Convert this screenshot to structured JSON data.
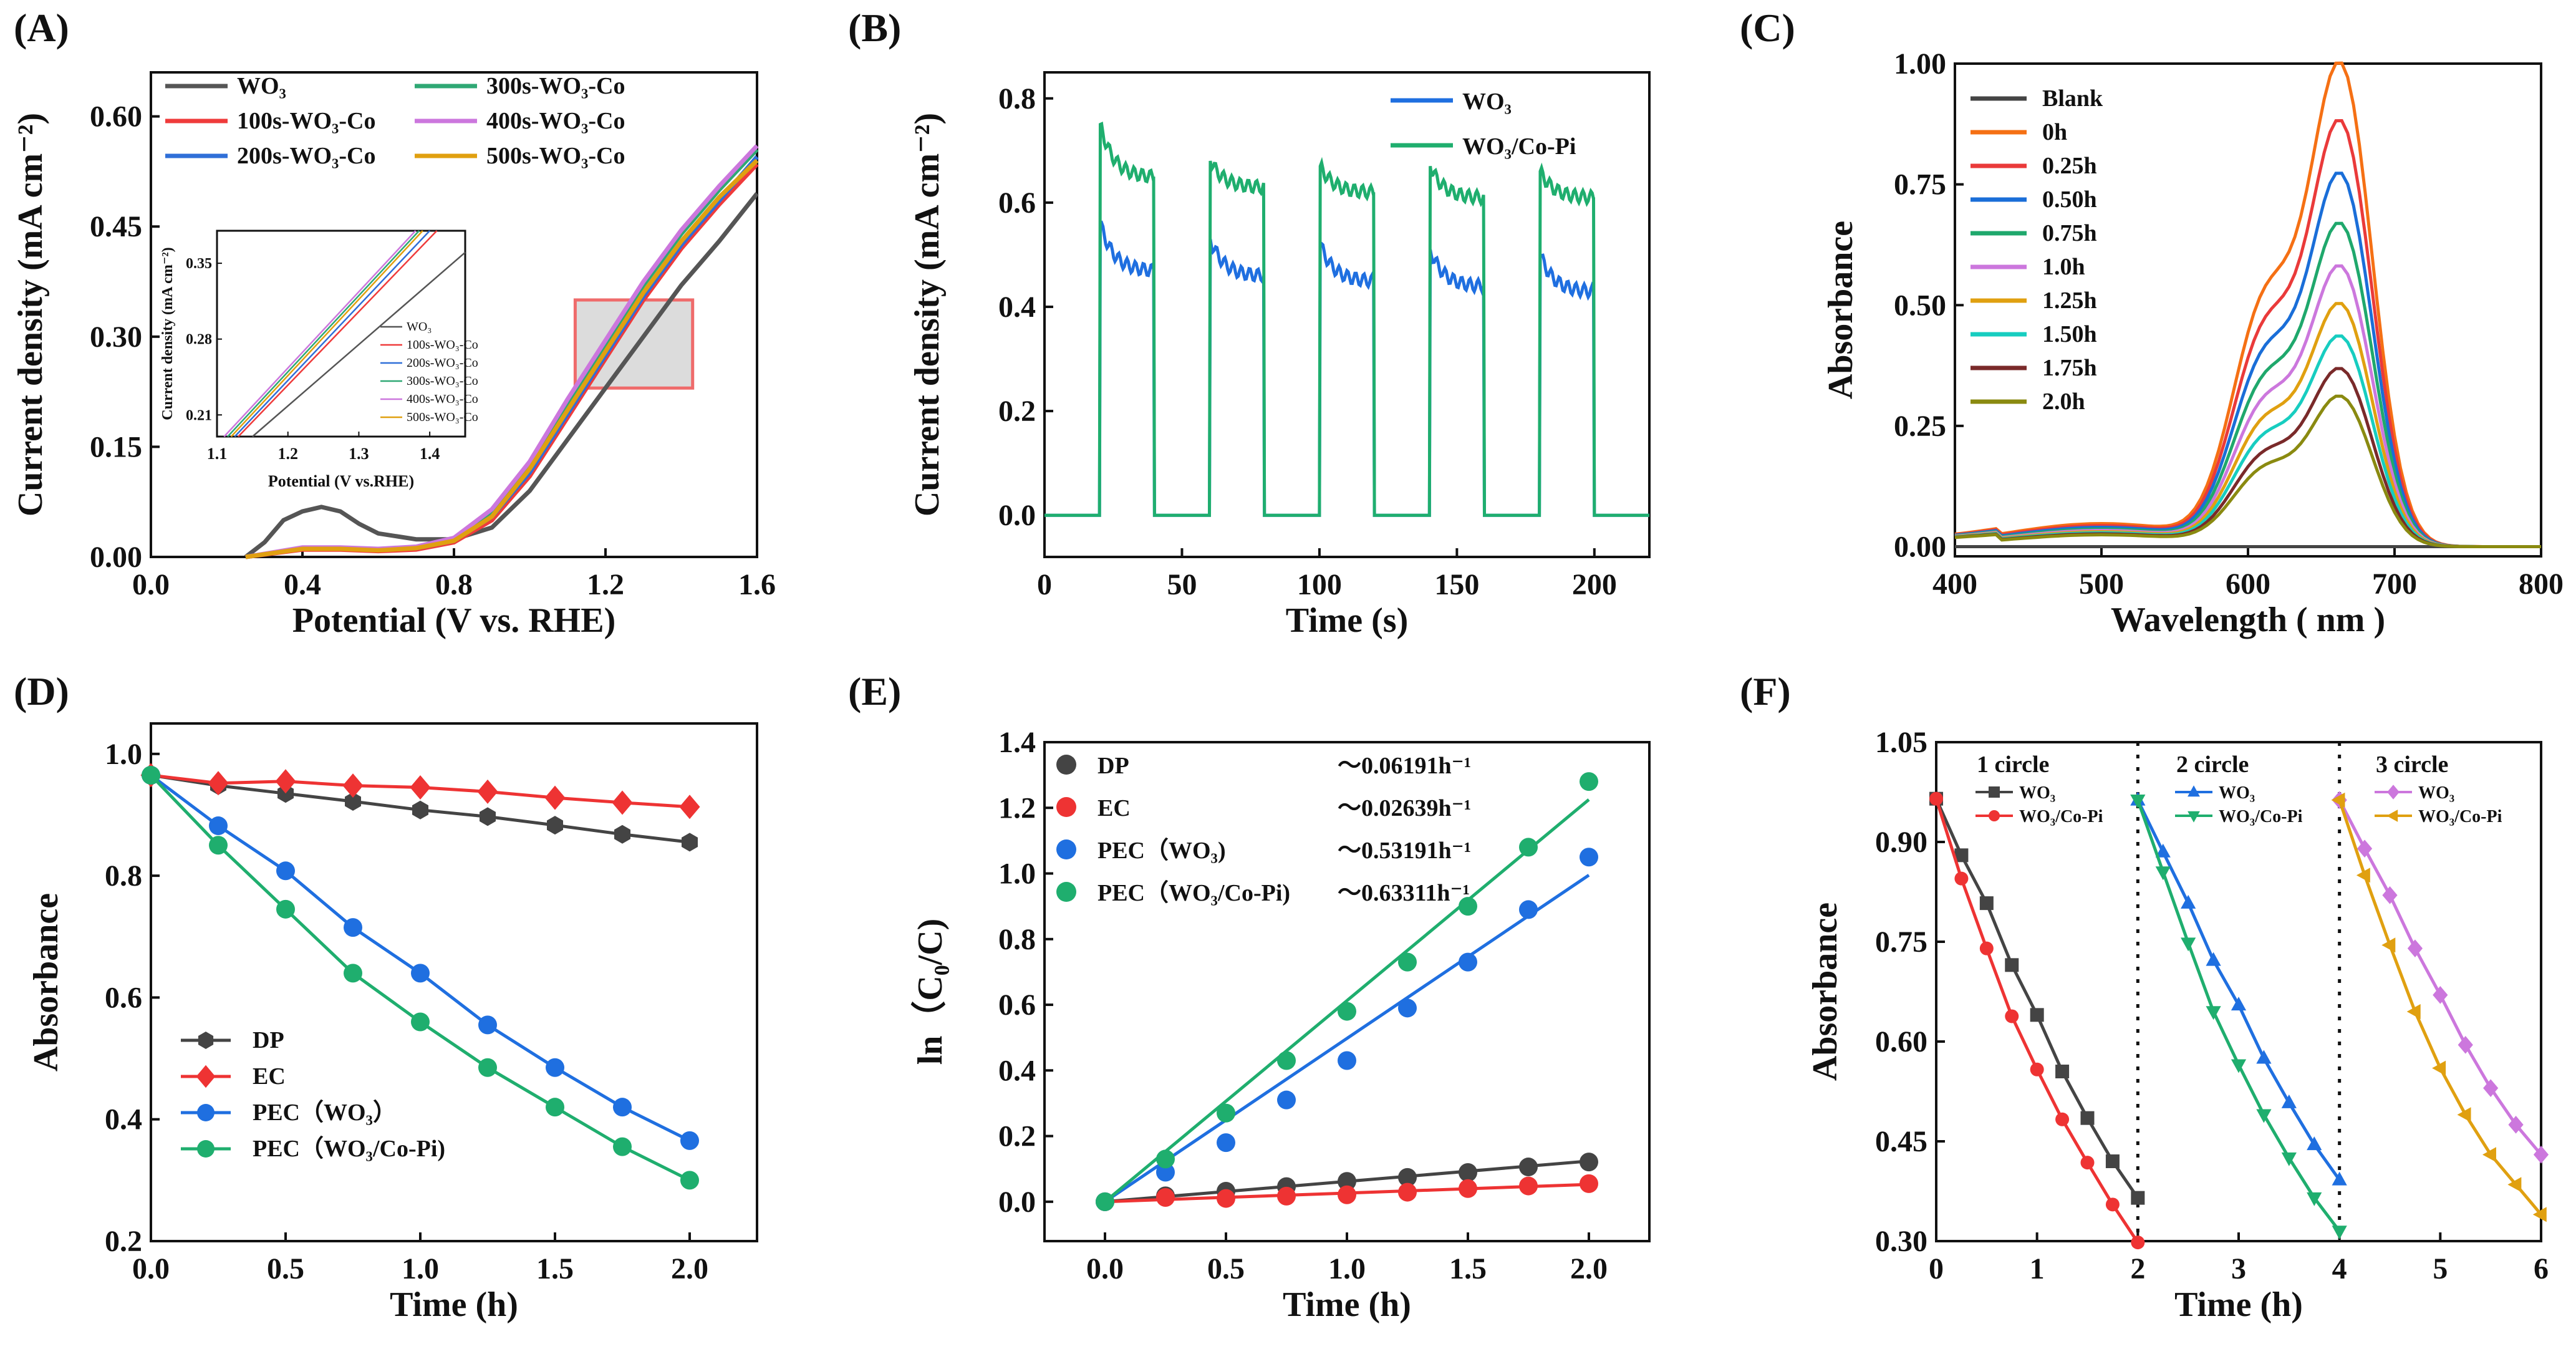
{
  "figure": {
    "panels": [
      "(A)",
      "(B)",
      "(C)",
      "(D)",
      "(E)",
      "(F)"
    ]
  },
  "chart_data": [
    {
      "id": "A",
      "type": "line",
      "label": "(A)",
      "xlabel": "Potential (V vs. RHE)",
      "ylabel": "Current density  (mA cm⁻²)",
      "xlim": [
        0,
        1.6
      ],
      "ylim": [
        0,
        0.66
      ],
      "xticks": [
        "0.0",
        "0.4",
        "0.8",
        "1.2",
        "1.6"
      ],
      "xtick_values": [
        0,
        0.4,
        0.8,
        1.2,
        1.6
      ],
      "yticks": [
        "0.00",
        "0.15",
        "0.30",
        "0.45",
        "0.60"
      ],
      "ytick_values": [
        0,
        0.15,
        0.3,
        0.45,
        0.6
      ],
      "series": [
        {
          "name": "WO₃",
          "color": "#555555",
          "x": [
            0.25,
            0.3,
            0.35,
            0.4,
            0.45,
            0.5,
            0.55,
            0.6,
            0.7,
            0.8,
            0.9,
            1.0,
            1.1,
            1.2,
            1.3,
            1.4,
            1.5,
            1.6
          ],
          "y": [
            0,
            0.02,
            0.05,
            0.062,
            0.068,
            0.062,
            0.045,
            0.032,
            0.024,
            0.024,
            0.04,
            0.09,
            0.16,
            0.23,
            0.3,
            0.37,
            0.43,
            0.495
          ]
        },
        {
          "name": "100s-WO₃-Co",
          "color": "#ef3b3b",
          "x": [
            0.25,
            0.4,
            0.5,
            0.6,
            0.7,
            0.8,
            0.9,
            1.0,
            1.1,
            1.2,
            1.3,
            1.4,
            1.5,
            1.6
          ],
          "y": [
            0,
            0.01,
            0.01,
            0.008,
            0.01,
            0.02,
            0.05,
            0.11,
            0.19,
            0.27,
            0.35,
            0.42,
            0.48,
            0.535
          ]
        },
        {
          "name": "200s-WO₃-Co",
          "color": "#2f6fd8",
          "x": [
            0.25,
            0.4,
            0.5,
            0.6,
            0.7,
            0.8,
            0.9,
            1.0,
            1.1,
            1.2,
            1.3,
            1.4,
            1.5,
            1.6
          ],
          "y": [
            0,
            0.012,
            0.012,
            0.01,
            0.012,
            0.022,
            0.055,
            0.115,
            0.195,
            0.275,
            0.355,
            0.425,
            0.485,
            0.545
          ]
        },
        {
          "name": "300s-WO₃-Co",
          "color": "#2fa874",
          "x": [
            0.25,
            0.4,
            0.5,
            0.6,
            0.7,
            0.8,
            0.9,
            1.0,
            1.1,
            1.2,
            1.3,
            1.4,
            1.5,
            1.6
          ],
          "y": [
            0,
            0.012,
            0.012,
            0.01,
            0.013,
            0.024,
            0.06,
            0.125,
            0.21,
            0.29,
            0.37,
            0.44,
            0.5,
            0.555
          ]
        },
        {
          "name": "400s-WO₃-Co",
          "color": "#cc77dd",
          "x": [
            0.25,
            0.4,
            0.5,
            0.6,
            0.7,
            0.8,
            0.9,
            1.0,
            1.1,
            1.2,
            1.3,
            1.4,
            1.5,
            1.6
          ],
          "y": [
            0,
            0.013,
            0.013,
            0.011,
            0.014,
            0.026,
            0.065,
            0.13,
            0.215,
            0.295,
            0.375,
            0.445,
            0.505,
            0.56
          ]
        },
        {
          "name": "500s-WO₃-Co",
          "color": "#e0a010",
          "x": [
            0.25,
            0.4,
            0.5,
            0.6,
            0.7,
            0.8,
            0.9,
            1.0,
            1.1,
            1.2,
            1.3,
            1.4,
            1.5,
            1.6
          ],
          "y": [
            0,
            0.011,
            0.011,
            0.009,
            0.012,
            0.022,
            0.055,
            0.12,
            0.2,
            0.28,
            0.36,
            0.43,
            0.49,
            0.54
          ]
        }
      ],
      "inset": {
        "xlabel": "Potential (V vs.RHE)",
        "ylabel": "Current density (mA cm⁻²)",
        "xlim": [
          1.1,
          1.45
        ],
        "ylim": [
          0.19,
          0.38
        ],
        "xticks": [
          "1.1",
          "1.2",
          "1.3",
          "1.4"
        ],
        "xtick_values": [
          1.1,
          1.2,
          1.3,
          1.4
        ],
        "yticks": [
          "0.21",
          "0.28",
          "0.35"
        ],
        "ytick_values": [
          0.21,
          0.28,
          0.35
        ],
        "legend": [
          "WO₃",
          "100s-WO₃-Co",
          "200s-WO₃-Co",
          "300s-WO₃-Co",
          "400s-WO₃-Co",
          "500s-WO₃-Co"
        ],
        "lines": [
          {
            "color": "#555555",
            "x": [
              1.15,
              1.45
            ],
            "y": [
              0.19,
              0.36
            ]
          },
          {
            "color": "#ef3b3b",
            "x": [
              1.13,
              1.41
            ],
            "y": [
              0.19,
              0.38
            ]
          },
          {
            "color": "#2f6fd8",
            "x": [
              1.125,
              1.4
            ],
            "y": [
              0.19,
              0.38
            ]
          },
          {
            "color": "#2fa874",
            "x": [
              1.115,
              1.385
            ],
            "y": [
              0.19,
              0.38
            ]
          },
          {
            "color": "#cc77dd",
            "x": [
              1.11,
              1.38
            ],
            "y": [
              0.19,
              0.38
            ]
          },
          {
            "color": "#e0a010",
            "x": [
              1.12,
              1.39
            ],
            "y": [
              0.19,
              0.38
            ]
          }
        ]
      },
      "highlight_box": {
        "x": [
          1.12,
          1.43
        ],
        "y": [
          0.23,
          0.35
        ]
      }
    },
    {
      "id": "B",
      "type": "line",
      "label": "(B)",
      "xlabel": "Time (s)",
      "ylabel": "Current density (mA cm⁻²)",
      "xlim": [
        0,
        220
      ],
      "ylim": [
        -0.08,
        0.85
      ],
      "xticks": [
        "0",
        "50",
        "100",
        "150",
        "200"
      ],
      "xtick_values": [
        0,
        50,
        100,
        150,
        200
      ],
      "yticks": [
        "0.0",
        "0.2",
        "0.4",
        "0.6",
        "0.8"
      ],
      "ytick_values": [
        0,
        0.2,
        0.4,
        0.6,
        0.8
      ],
      "light_on_intervals": [
        [
          20,
          40
        ],
        [
          60,
          80
        ],
        [
          100,
          120
        ],
        [
          140,
          160
        ],
        [
          180,
          200
        ]
      ],
      "series": [
        {
          "name": "WO₃",
          "color": "#1f6fe0",
          "on_start": [
            0.56,
            0.53,
            0.52,
            0.51,
            0.5
          ],
          "on_end": [
            0.47,
            0.46,
            0.45,
            0.44,
            0.43
          ]
        },
        {
          "name": "WO₃/Co-Pi",
          "color": "#1fae6e",
          "on_start": [
            0.75,
            0.68,
            0.67,
            0.67,
            0.66
          ],
          "on_end": [
            0.65,
            0.63,
            0.62,
            0.61,
            0.61
          ]
        }
      ]
    },
    {
      "id": "C",
      "type": "line",
      "label": "(C)",
      "xlabel": "Wavelength ( nm )",
      "ylabel": "Absorbance",
      "xlim": [
        400,
        800
      ],
      "ylim": [
        -0.02,
        1.0
      ],
      "xticks": [
        "400",
        "500",
        "600",
        "700",
        "800"
      ],
      "xtick_values": [
        400,
        500,
        600,
        700,
        800
      ],
      "yticks": [
        "0.00",
        "0.25",
        "0.50",
        "0.75",
        "1.00"
      ],
      "ytick_values": [
        0,
        0.25,
        0.5,
        0.75,
        1.0
      ],
      "series": [
        {
          "name": "Blank",
          "color": "#444444",
          "peak": 0.0
        },
        {
          "name": "0h",
          "color": "#f57014",
          "peak": 0.965
        },
        {
          "name": "0.25h",
          "color": "#ea3a3a",
          "peak": 0.85
        },
        {
          "name": "0.50h",
          "color": "#1a6ed8",
          "peak": 0.745
        },
        {
          "name": "0.75h",
          "color": "#1fa86c",
          "peak": 0.645
        },
        {
          "name": "1.0h",
          "color": "#cc77dd",
          "peak": 0.56
        },
        {
          "name": "1.25h",
          "color": "#e0a010",
          "peak": 0.485
        },
        {
          "name": "1.50h",
          "color": "#17cdc0",
          "peak": 0.42
        },
        {
          "name": "1.75h",
          "color": "#7a2a2a",
          "peak": 0.355
        },
        {
          "name": "2.0h",
          "color": "#8a8a10",
          "peak": 0.3
        }
      ]
    },
    {
      "id": "D",
      "type": "line",
      "label": "(D)",
      "xlabel": "Time (h)",
      "ylabel": "Absorbance",
      "xlim": [
        0,
        2.25
      ],
      "ylim": [
        0.2,
        1.05
      ],
      "xticks": [
        "0.0",
        "0.5",
        "1.0",
        "1.5",
        "2.0"
      ],
      "xtick_values": [
        0,
        0.5,
        1,
        1.5,
        2
      ],
      "yticks": [
        "0.2",
        "0.4",
        "0.6",
        "0.8",
        "1.0"
      ],
      "ytick_values": [
        0.2,
        0.4,
        0.6,
        0.8,
        1.0
      ],
      "x": [
        0,
        0.25,
        0.5,
        0.75,
        1.0,
        1.25,
        1.5,
        1.75,
        2.0
      ],
      "series": [
        {
          "name": "DP",
          "color": "#444444",
          "marker": "hexagon",
          "values": [
            0.965,
            0.948,
            0.935,
            0.922,
            0.908,
            0.897,
            0.883,
            0.868,
            0.855
          ]
        },
        {
          "name": "EC",
          "color": "#ee3333",
          "marker": "diamond",
          "values": [
            0.965,
            0.952,
            0.955,
            0.948,
            0.945,
            0.938,
            0.928,
            0.92,
            0.913
          ]
        },
        {
          "name": "PEC（WO₃）",
          "color": "#1f6fe0",
          "marker": "circle",
          "values": [
            0.965,
            0.882,
            0.808,
            0.715,
            0.64,
            0.555,
            0.485,
            0.42,
            0.365
          ]
        },
        {
          "name": "PEC（WO₃/Co-Pi)",
          "color": "#1fae6e",
          "marker": "circle",
          "values": [
            0.965,
            0.85,
            0.745,
            0.64,
            0.56,
            0.485,
            0.42,
            0.355,
            0.3
          ]
        }
      ]
    },
    {
      "id": "E",
      "type": "scatter",
      "label": "(E)",
      "xlabel": "Time (h)",
      "ylabel": "ln（C₀/C)",
      "xlim": [
        -0.25,
        2.25
      ],
      "ylim": [
        -0.12,
        1.4
      ],
      "xticks": [
        "0.0",
        "0.5",
        "1.0",
        "1.5",
        "2.0"
      ],
      "xtick_values": [
        0,
        0.5,
        1,
        1.5,
        2
      ],
      "yticks": [
        "0.0",
        "0.2",
        "0.4",
        "0.6",
        "0.8",
        "1.0",
        "1.2",
        "1.4"
      ],
      "ytick_values": [
        0,
        0.2,
        0.4,
        0.6,
        0.8,
        1.0,
        1.2,
        1.4
      ],
      "x": [
        0,
        0.25,
        0.5,
        0.75,
        1.0,
        1.25,
        1.5,
        1.75,
        2.0
      ],
      "series": [
        {
          "name": "DP",
          "rate": "～0.06191h⁻¹",
          "color": "#444444",
          "values": [
            0,
            0.018,
            0.032,
            0.046,
            0.062,
            0.074,
            0.089,
            0.106,
            0.121
          ],
          "fit": [
            0,
            0.1238
          ]
        },
        {
          "name": "EC",
          "rate": "～0.02639h⁻¹",
          "color": "#ee3333",
          "values": [
            0,
            0.013,
            0.01,
            0.017,
            0.021,
            0.029,
            0.04,
            0.048,
            0.055
          ],
          "fit": [
            0,
            0.0528
          ]
        },
        {
          "name": "PEC（WO₃)",
          "rate": "～0.53191h⁻¹",
          "color": "#1f6fe0",
          "values": [
            0,
            0.09,
            0.18,
            0.31,
            0.43,
            0.59,
            0.73,
            0.89,
            1.05
          ],
          "fit": [
            0,
            0.995
          ]
        },
        {
          "name": "PEC（WO₃/Co-Pi)",
          "rate": "～0.63311h⁻¹",
          "color": "#1fae6e",
          "values": [
            0,
            0.13,
            0.27,
            0.43,
            0.58,
            0.73,
            0.9,
            1.08,
            1.28
          ],
          "fit": [
            0,
            1.225
          ]
        }
      ]
    },
    {
      "id": "F",
      "type": "line",
      "label": "(F)",
      "xlabel": "Time (h)",
      "ylabel": "Absorbance",
      "xlim": [
        0,
        6
      ],
      "ylim": [
        0.3,
        1.05
      ],
      "xticks": [
        "0",
        "1",
        "2",
        "3",
        "4",
        "5",
        "6"
      ],
      "xtick_values": [
        0,
        1,
        2,
        3,
        4,
        5,
        6
      ],
      "yticks": [
        "0.30",
        "0.45",
        "0.60",
        "0.75",
        "0.90",
        "1.05"
      ],
      "ytick_values": [
        0.3,
        0.45,
        0.6,
        0.75,
        0.9,
        1.05
      ],
      "dividers": [
        2,
        4
      ],
      "cycle_labels": [
        "1 circle",
        "2 circle",
        "3 circle"
      ],
      "series": [
        {
          "name": "WO₃",
          "color": "#444444",
          "marker": "square",
          "x": [
            0,
            0.25,
            0.5,
            0.75,
            1.0,
            1.25,
            1.5,
            1.75,
            2.0
          ],
          "values": [
            0.965,
            0.88,
            0.808,
            0.715,
            0.64,
            0.555,
            0.485,
            0.42,
            0.365
          ]
        },
        {
          "name": "WO₃/Co-Pi",
          "color": "#ee3333",
          "marker": "circle",
          "x": [
            0,
            0.25,
            0.5,
            0.75,
            1.0,
            1.25,
            1.5,
            1.75,
            2.0
          ],
          "values": [
            0.965,
            0.845,
            0.74,
            0.638,
            0.558,
            0.483,
            0.418,
            0.355,
            0.298
          ]
        },
        {
          "name": "WO₃",
          "color": "#1f6fe0",
          "marker": "triangle-up",
          "x": [
            2,
            2.25,
            2.5,
            2.75,
            3.0,
            3.25,
            3.5,
            3.75,
            4.0
          ],
          "values": [
            0.963,
            0.885,
            0.808,
            0.722,
            0.655,
            0.575,
            0.508,
            0.445,
            0.392
          ]
        },
        {
          "name": "WO₃/Co-Pi",
          "color": "#1fae6e",
          "marker": "triangle-down",
          "x": [
            2,
            2.25,
            2.5,
            2.75,
            3.0,
            3.25,
            3.5,
            3.75,
            4.0
          ],
          "values": [
            0.963,
            0.855,
            0.748,
            0.645,
            0.565,
            0.49,
            0.425,
            0.365,
            0.315
          ]
        },
        {
          "name": "WO₃",
          "color": "#cc77dd",
          "marker": "diamond",
          "x": [
            4,
            4.25,
            4.5,
            4.75,
            5.0,
            5.25,
            5.5,
            5.75,
            6.0
          ],
          "values": [
            0.963,
            0.89,
            0.82,
            0.74,
            0.67,
            0.595,
            0.53,
            0.475,
            0.43
          ]
        },
        {
          "name": "WO₃/Co-Pi",
          "color": "#e0a010",
          "marker": "triangle-left",
          "x": [
            4,
            4.25,
            4.5,
            4.75,
            5.0,
            5.25,
            5.5,
            5.75,
            6.0
          ],
          "values": [
            0.963,
            0.85,
            0.745,
            0.645,
            0.56,
            0.49,
            0.43,
            0.385,
            0.34
          ]
        }
      ]
    }
  ]
}
